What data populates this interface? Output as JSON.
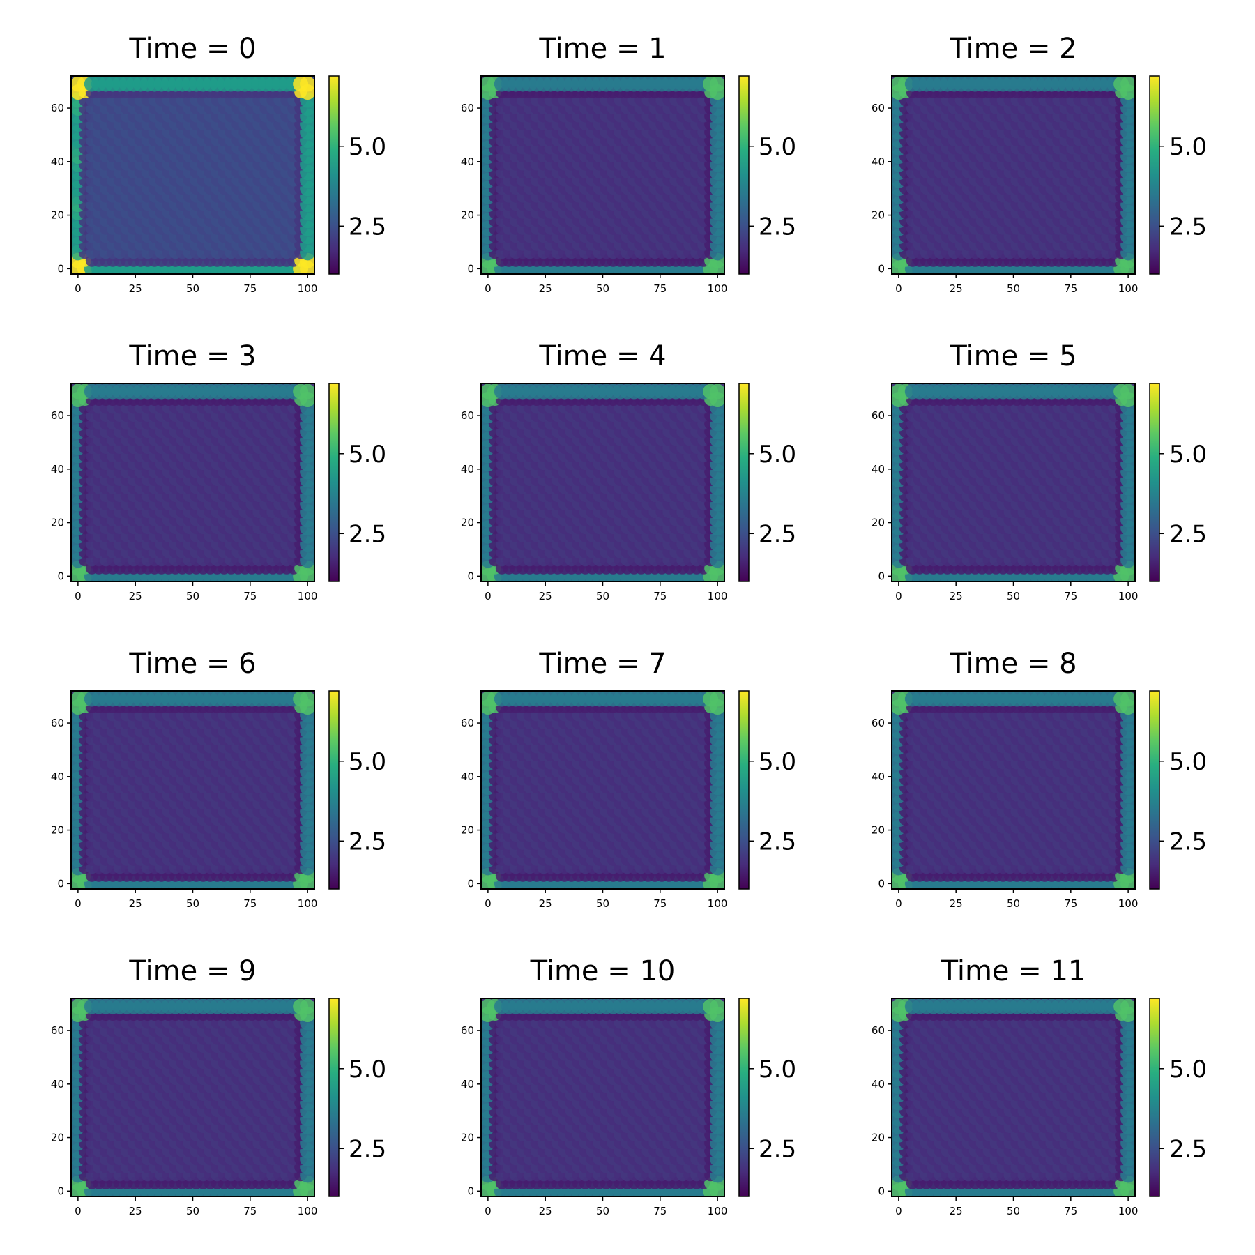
{
  "chart_data": {
    "type": "heatmap",
    "colormap": "viridis",
    "color_range": [
      1.0,
      7.2
    ],
    "xlim": [
      -3,
      103
    ],
    "ylim": [
      -2,
      72
    ],
    "x_ticks": [
      "0",
      "25",
      "50",
      "75",
      "100"
    ],
    "y_ticks": [
      "0",
      "20",
      "40",
      "60"
    ],
    "colorbar_ticks": [
      "2.5",
      "5.0"
    ],
    "grid": false,
    "panels": [
      {
        "title": "Time = 0",
        "edge_level": 0.55,
        "interior_level": 0.22,
        "corner_level": 1.0
      },
      {
        "title": "Time = 1",
        "edge_level": 0.42,
        "interior_level": 0.14,
        "corner_level": 0.72
      },
      {
        "title": "Time = 2",
        "edge_level": 0.42,
        "interior_level": 0.14,
        "corner_level": 0.72
      },
      {
        "title": "Time = 3",
        "edge_level": 0.42,
        "interior_level": 0.14,
        "corner_level": 0.72
      },
      {
        "title": "Time = 4",
        "edge_level": 0.42,
        "interior_level": 0.14,
        "corner_level": 0.72
      },
      {
        "title": "Time = 5",
        "edge_level": 0.42,
        "interior_level": 0.14,
        "corner_level": 0.72
      },
      {
        "title": "Time = 6",
        "edge_level": 0.42,
        "interior_level": 0.14,
        "corner_level": 0.72
      },
      {
        "title": "Time = 7",
        "edge_level": 0.42,
        "interior_level": 0.14,
        "corner_level": 0.72
      },
      {
        "title": "Time = 8",
        "edge_level": 0.42,
        "interior_level": 0.14,
        "corner_level": 0.72
      },
      {
        "title": "Time = 9",
        "edge_level": 0.42,
        "interior_level": 0.14,
        "corner_level": 0.72
      },
      {
        "title": "Time = 10",
        "edge_level": 0.42,
        "interior_level": 0.14,
        "corner_level": 0.72
      },
      {
        "title": "Time = 11",
        "edge_level": 0.42,
        "interior_level": 0.14,
        "corner_level": 0.72
      }
    ]
  }
}
